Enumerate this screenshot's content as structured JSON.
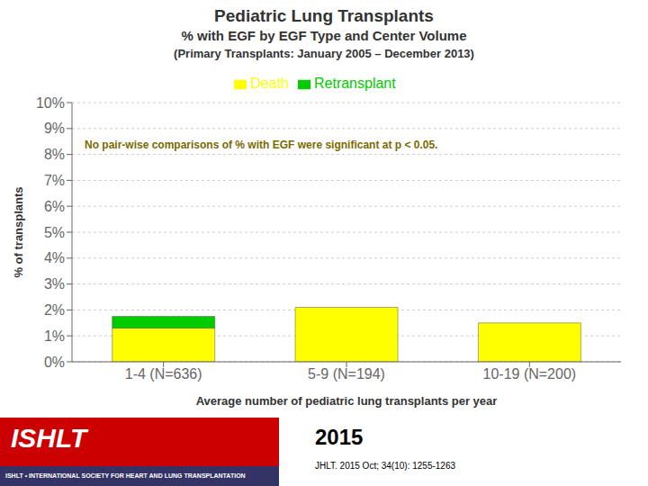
{
  "chart_data": {
    "type": "bar",
    "title": "Pediatric Lung Transplants",
    "subtitle": [
      "% with EGF by EGF Type and Center Volume",
      "(Primary Transplants: January 2005 – December 2013)"
    ],
    "x_label": "Average number of pediatric lung transplants per year",
    "y_label": "% of transplants",
    "categories": [
      "1-4 (N=636)",
      "5-9 (N=194)",
      "10-19 (N=200)"
    ],
    "series": [
      {
        "name": "Death",
        "color": "#FFFF00",
        "values": [
          1.3,
          2.1,
          1.5
        ]
      },
      {
        "name": "Retransplant",
        "color": "#00CC00",
        "values": [
          0.45,
          0.0,
          0.0
        ]
      }
    ],
    "stacked": true,
    "ylim": [
      0,
      10
    ],
    "yticks": [
      {
        "value": 0,
        "label": "0%"
      },
      {
        "value": 1,
        "label": "1%"
      },
      {
        "value": 2,
        "label": "2%"
      },
      {
        "value": 3,
        "label": "3%"
      },
      {
        "value": 4,
        "label": "4%"
      },
      {
        "value": 5,
        "label": "5%"
      },
      {
        "value": 6,
        "label": "6%"
      },
      {
        "value": 7,
        "label": "7%"
      },
      {
        "value": 8,
        "label": "8%"
      },
      {
        "value": 9,
        "label": "9%"
      },
      {
        "value": 10,
        "label": "10%"
      }
    ],
    "grid": true,
    "legend": "top",
    "annotations": [
      "No pair-wise comparisons of % with EGF were significant at p < 0.05.",
      "ISHLT",
      "ISHLT • INTERNATIONAL SOCIETY FOR HEART AND LUNG TRANSPLANTATION",
      "2015",
      "JHLT. 2015 Oct; 34(10): 1255-1263"
    ]
  }
}
